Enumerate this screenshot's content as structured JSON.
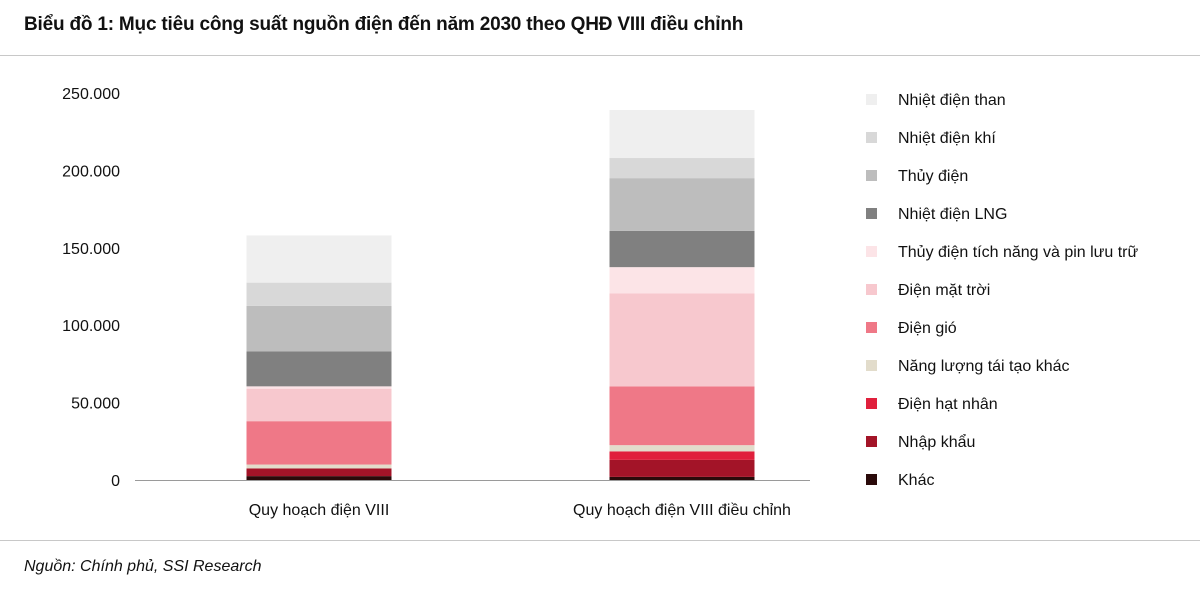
{
  "title": "Biểu đồ 1: Mục tiêu công suất nguồn điện đến năm 2030 theo QHĐ VIII điều chỉnh",
  "source": "Nguồn: Chính phủ, SSI Research",
  "chart_data": {
    "type": "bar",
    "stacked": true,
    "categories": [
      "Quy hoạch điện VIII",
      "Quy hoạch điện VIII điều chỉnh"
    ],
    "ylim": [
      0,
      250000
    ],
    "yticks": [
      {
        "value": 0,
        "label": "0"
      },
      {
        "value": 50000,
        "label": "50.000"
      },
      {
        "value": 100000,
        "label": "100.000"
      },
      {
        "value": 150000,
        "label": "150.000"
      },
      {
        "value": 200000,
        "label": "200.000"
      },
      {
        "value": 250000,
        "label": "250.000"
      }
    ],
    "grid": false,
    "legend_position": "right",
    "series": [
      {
        "name": "Khác",
        "color": "#2a0a0a",
        "values": [
          2500,
          2000
        ]
      },
      {
        "name": "Nhập khẩu",
        "color": "#a31428",
        "values": [
          5000,
          11000
        ]
      },
      {
        "name": "Điện hạt nhân",
        "color": "#e0203c",
        "values": [
          0,
          5500
        ]
      },
      {
        "name": "Năng lượng tái tạo khác",
        "color": "#e2dccb",
        "values": [
          2500,
          4000
        ]
      },
      {
        "name": "Điện gió",
        "color": "#ef7887",
        "values": [
          28000,
          38000
        ]
      },
      {
        "name": "Điện mặt trời",
        "color": "#f7c8ce",
        "values": [
          21000,
          60000
        ]
      },
      {
        "name": "Thủy điện tích năng và pin lưu trữ",
        "color": "#fce4e7",
        "values": [
          1500,
          17000
        ]
      },
      {
        "name": "Nhiệt điện LNG",
        "color": "#808080",
        "values": [
          22500,
          23500
        ]
      },
      {
        "name": "Thủy điện",
        "color": "#bdbdbd",
        "values": [
          29500,
          34000
        ]
      },
      {
        "name": "Nhiệt điện khí",
        "color": "#d8d8d8",
        "values": [
          15000,
          13000
        ]
      },
      {
        "name": "Nhiệt điện than",
        "color": "#efefef",
        "values": [
          30500,
          31000
        ]
      }
    ],
    "legend_order": [
      "Nhiệt điện than",
      "Nhiệt điện khí",
      "Thủy điện",
      "Nhiệt điện LNG",
      "Thủy điện tích năng và pin lưu trữ",
      "Điện mặt trời",
      "Điện gió",
      "Năng lượng tái tạo khác",
      "Điện hạt nhân",
      "Nhập khẩu",
      "Khác"
    ]
  }
}
